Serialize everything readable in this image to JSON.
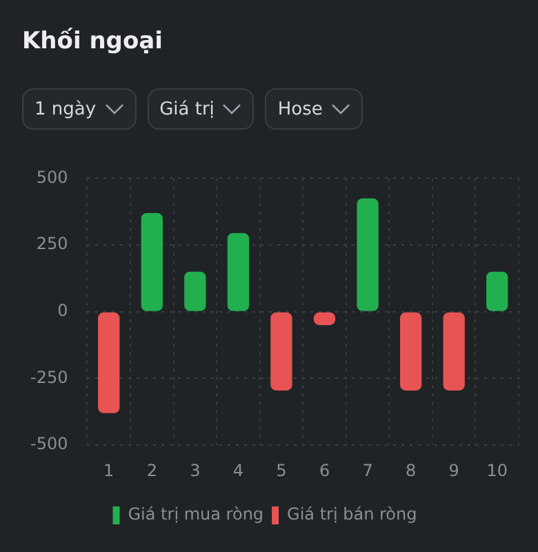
{
  "chart_data": {
    "type": "bar",
    "title": "Khối ngoại",
    "annotations": [
      "1 ngày",
      "Giá trị",
      "Hose"
    ],
    "categories": [
      "1",
      "2",
      "3",
      "4",
      "5",
      "6",
      "7",
      "8",
      "9",
      "10"
    ],
    "series": [
      {
        "name": "Giá trị mua ròng",
        "color": "#22b04f",
        "values": [
          null,
          370,
          150,
          295,
          null,
          null,
          425,
          null,
          null,
          150
        ]
      },
      {
        "name": "Giá trị bán ròng",
        "color": "#e85454",
        "values": [
          -380,
          null,
          null,
          null,
          -295,
          -50,
          null,
          -295,
          -295,
          null
        ]
      }
    ],
    "stacked": true,
    "ylim": [
      -500,
      500
    ],
    "yticks": [
      -500,
      -250,
      0,
      250,
      500
    ],
    "grid": true,
    "legend": "bottom"
  }
}
